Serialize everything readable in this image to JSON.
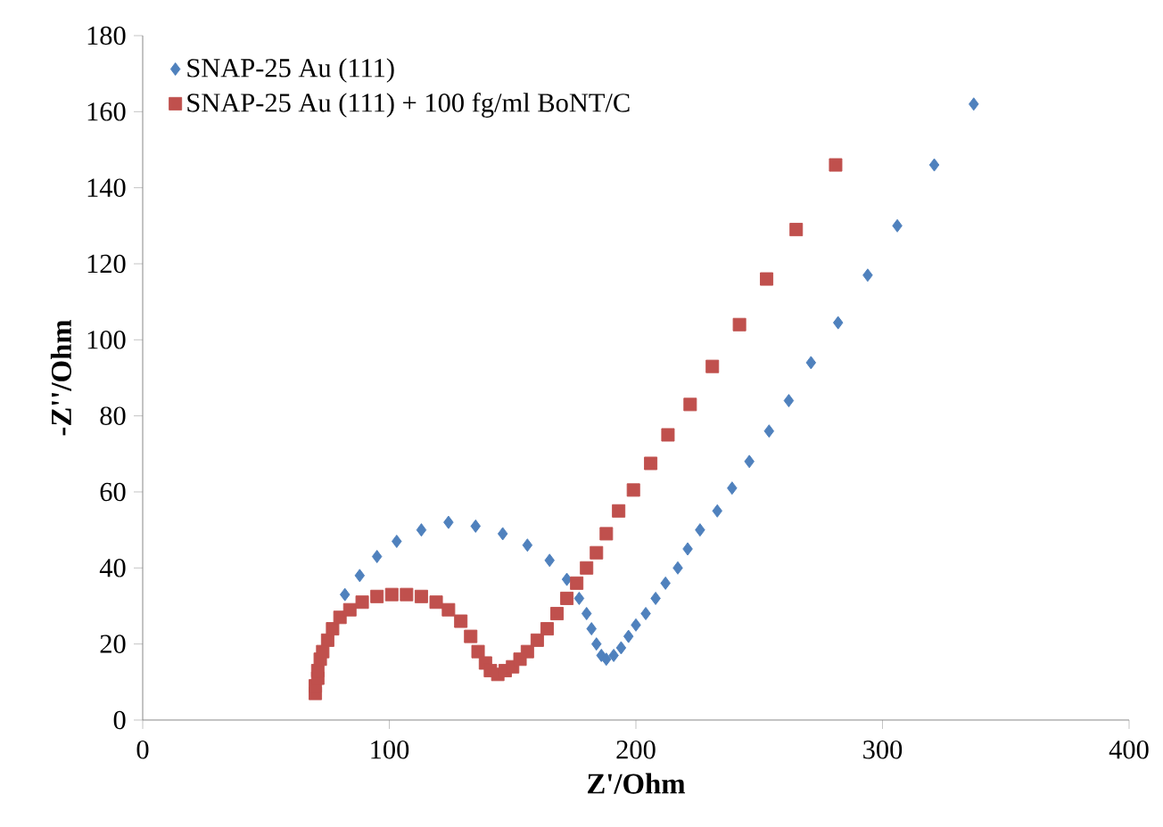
{
  "chart_data": {
    "type": "scatter",
    "xlabel": "Z'/Ohm",
    "ylabel": "-Z''/Ohm",
    "xlim": [
      0,
      400
    ],
    "xticks": [
      0,
      100,
      200,
      300,
      400
    ],
    "ylim": [
      0,
      180
    ],
    "yticks": [
      0,
      20,
      40,
      60,
      80,
      100,
      120,
      140,
      160,
      180
    ],
    "legend": "top left",
    "grid": false,
    "series": [
      {
        "name": "SNAP-25 Au (111)",
        "color": "#4f81bd",
        "marker": "diamond",
        "x": [
          82,
          88,
          95,
          103,
          113,
          124,
          135,
          146,
          156,
          165,
          172,
          177,
          180,
          182,
          184,
          186,
          188,
          191,
          194,
          197,
          200,
          204,
          208,
          212,
          217,
          221,
          226,
          233,
          239,
          246,
          254,
          262,
          271,
          282,
          294,
          306,
          321,
          337
        ],
        "values": [
          33,
          38,
          43,
          47,
          50,
          52,
          51,
          49,
          46,
          42,
          37,
          32,
          28,
          24,
          20,
          17,
          16,
          17,
          19,
          22,
          25,
          28,
          32,
          36,
          40,
          45,
          50,
          55,
          61,
          68,
          76,
          84,
          94,
          104.5,
          117,
          130,
          146,
          162
        ]
      },
      {
        "name": "SNAP-25 Au (111) + 100 fg/ml BoNT/C",
        "color": "#c0504d",
        "marker": "square",
        "x": [
          70,
          70,
          71,
          71,
          72,
          73,
          75,
          77,
          80,
          84,
          89,
          95,
          101,
          107,
          113,
          119,
          124,
          129,
          133,
          136,
          139,
          141,
          144,
          147,
          150,
          153,
          156,
          160,
          164,
          168,
          172,
          176,
          180,
          184,
          188,
          193,
          199,
          206,
          213,
          222,
          231,
          242,
          253,
          265,
          281
        ],
        "values": [
          7,
          9,
          11,
          13,
          16,
          18,
          21,
          24,
          27,
          29,
          31,
          32.5,
          33,
          33,
          32.5,
          31,
          29,
          26,
          22,
          18,
          15,
          13,
          12,
          13,
          14,
          16,
          18,
          21,
          24,
          28,
          32,
          36,
          40,
          44,
          49,
          55,
          60.5,
          67.5,
          75,
          83,
          93,
          104,
          116,
          129,
          146
        ]
      }
    ]
  }
}
